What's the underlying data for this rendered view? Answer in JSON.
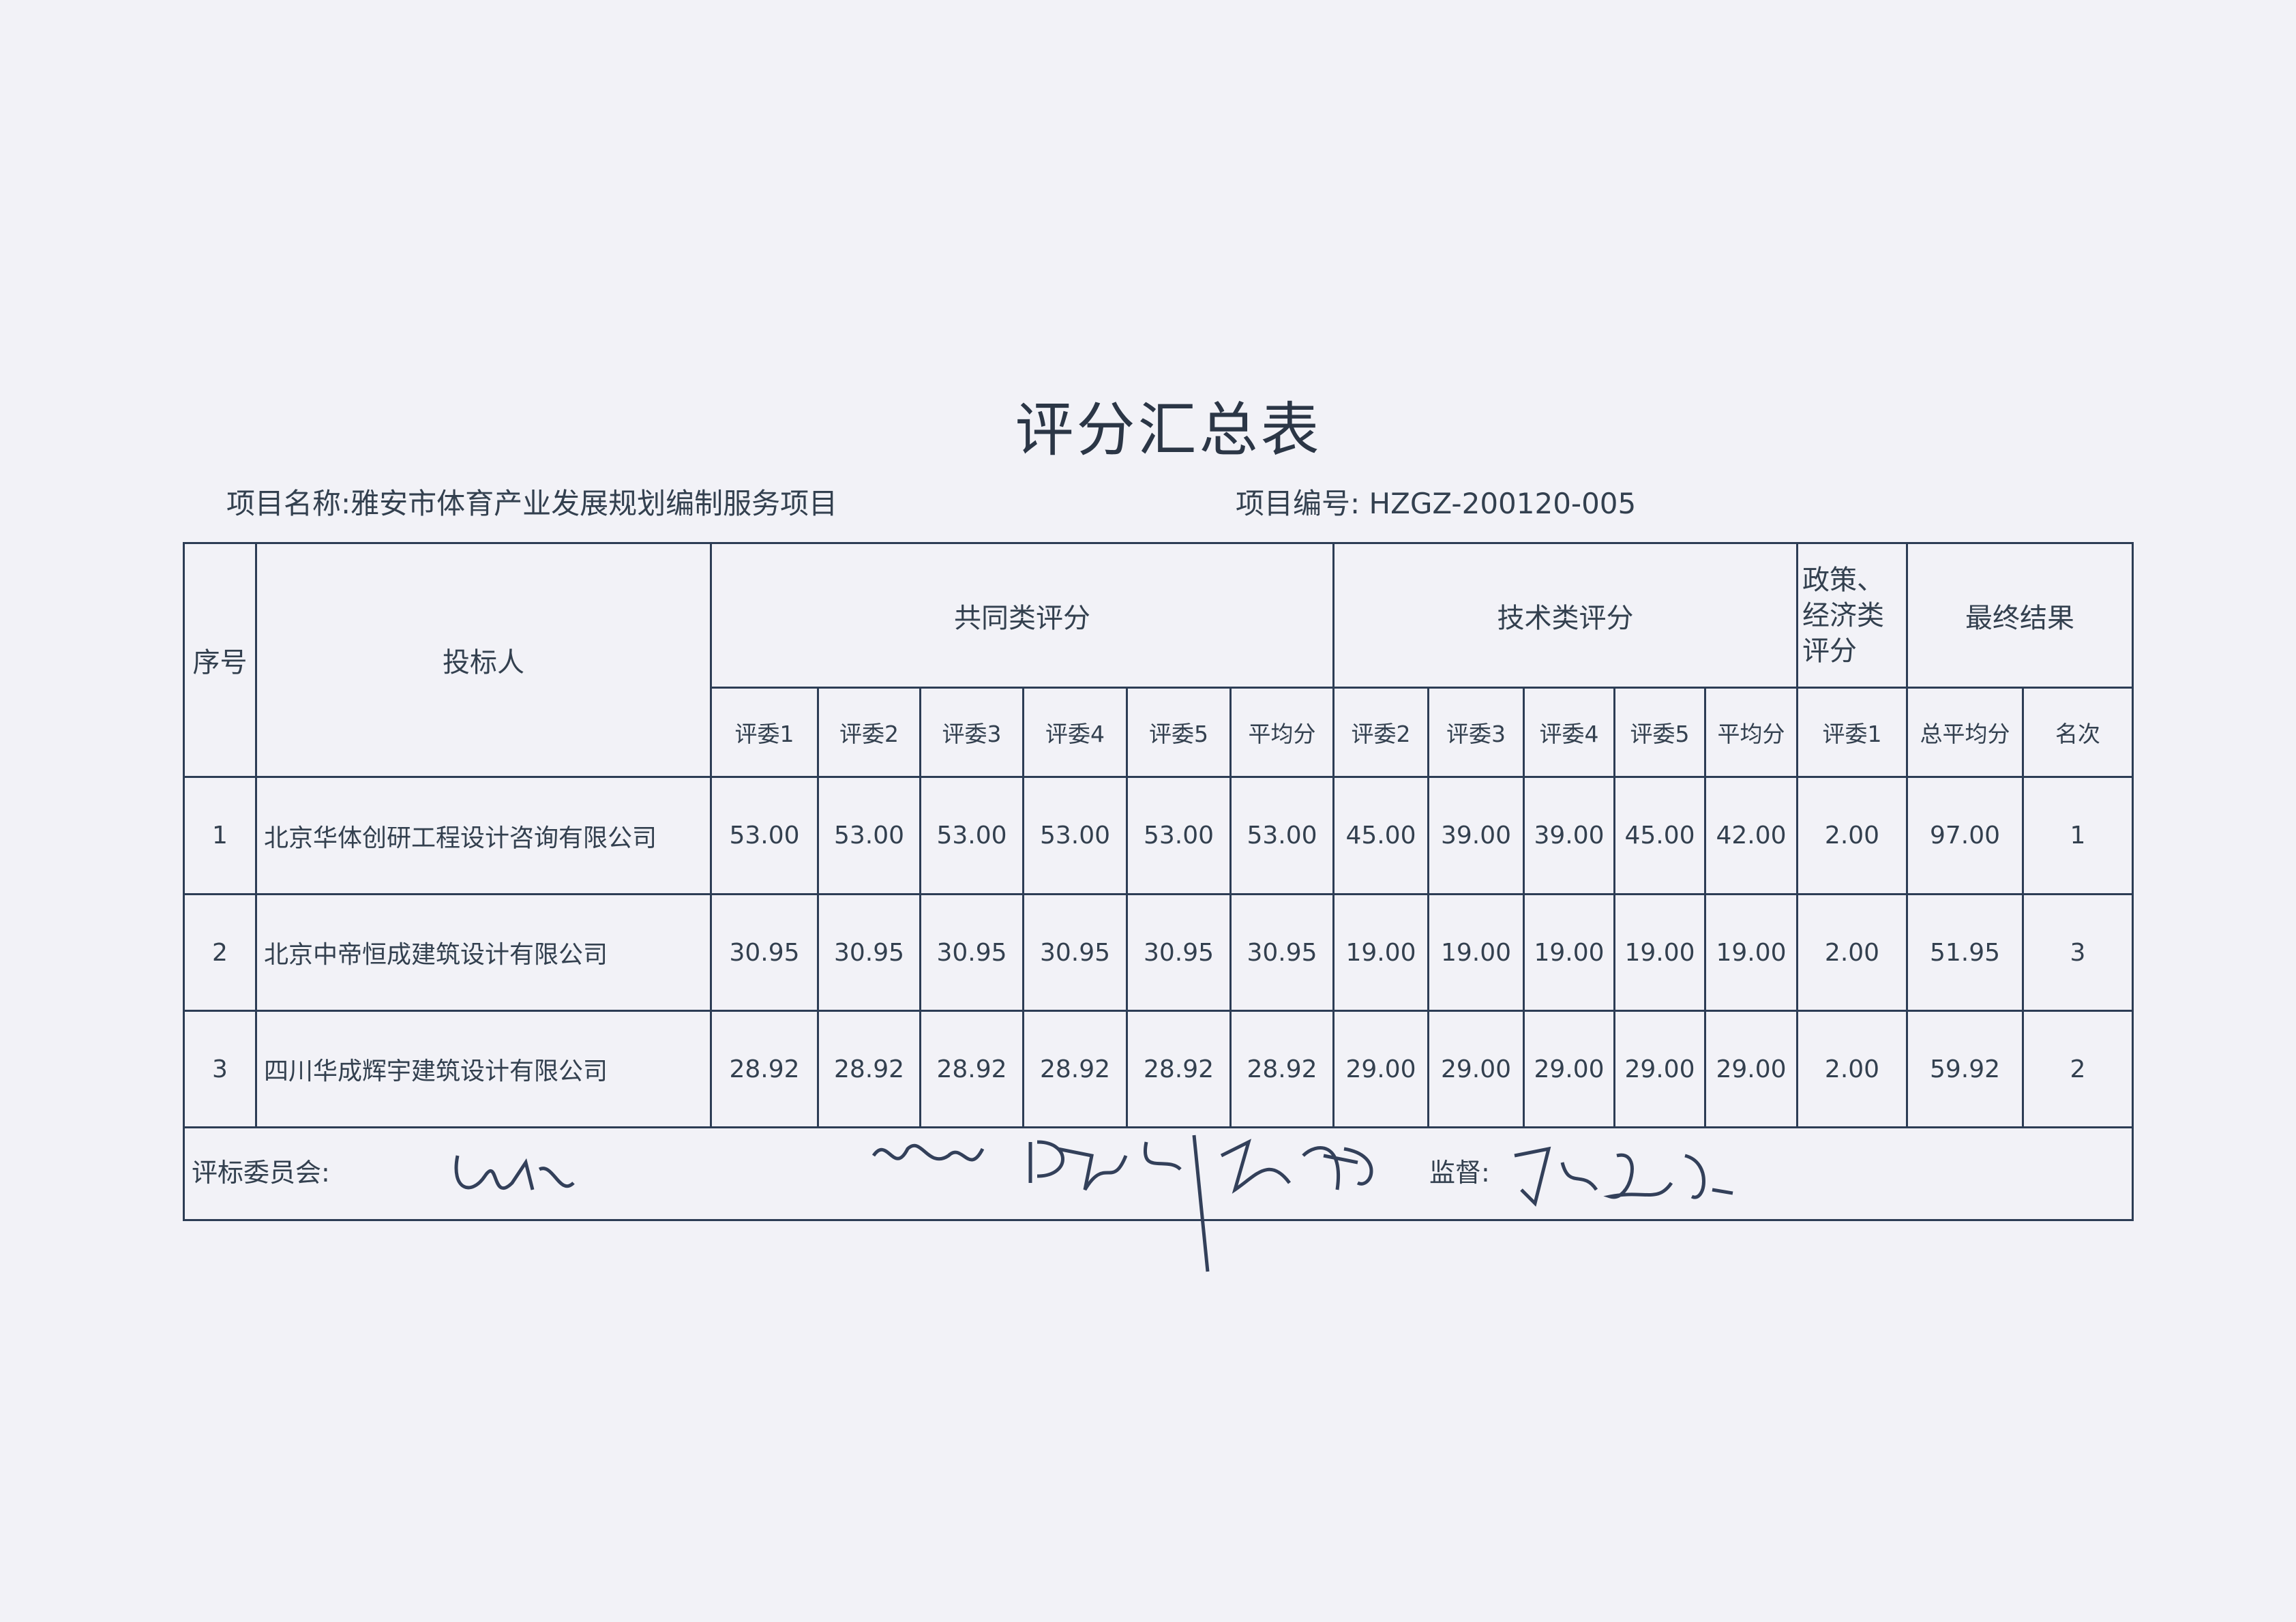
{
  "title": "评分汇总表",
  "project_name": "项目名称:雅安市体育产业发展规划编制服务项目",
  "project_code": "项目编号: HZGZ-200120-005",
  "headers": {
    "seq": "序号",
    "bidder": "投标人",
    "common": "共同类评分",
    "tech": "技术类评分",
    "policy": "政策、经济类评分",
    "final": "最终结果",
    "common_sub": [
      "评委1",
      "评委2",
      "评委3",
      "评委4",
      "评委5",
      "平均分"
    ],
    "tech_sub": [
      "评委2",
      "评委3",
      "评委4",
      "评委5",
      "平均分"
    ],
    "policy_sub": [
      "评委1"
    ],
    "final_sub": [
      "总平均分",
      "名次"
    ]
  },
  "rows": [
    {
      "seq": "1",
      "bidder": "北京华体创研工程设计咨询有限公司",
      "cells": [
        "53.00",
        "53.00",
        "53.00",
        "53.00",
        "53.00",
        "53.00",
        "45.00",
        "39.00",
        "39.00",
        "45.00",
        "42.00",
        "2.00",
        "97.00",
        "1"
      ]
    },
    {
      "seq": "2",
      "bidder": "北京中帝恒成建筑设计有限公司",
      "cells": [
        "30.95",
        "30.95",
        "30.95",
        "30.95",
        "30.95",
        "30.95",
        "19.00",
        "19.00",
        "19.00",
        "19.00",
        "19.00",
        "2.00",
        "51.95",
        "3"
      ]
    },
    {
      "seq": "3",
      "bidder": "四川华成辉宇建筑设计有限公司",
      "cells": [
        "28.92",
        "28.92",
        "28.92",
        "28.92",
        "28.92",
        "28.92",
        "29.00",
        "29.00",
        "29.00",
        "29.00",
        "29.00",
        "2.00",
        "59.92",
        "2"
      ]
    }
  ],
  "footer": {
    "committee_label": "评标委员会:",
    "supervisor_label": "监督:"
  },
  "colors": {
    "ink": "#2d3d55",
    "paper": "#f2f2f7"
  }
}
